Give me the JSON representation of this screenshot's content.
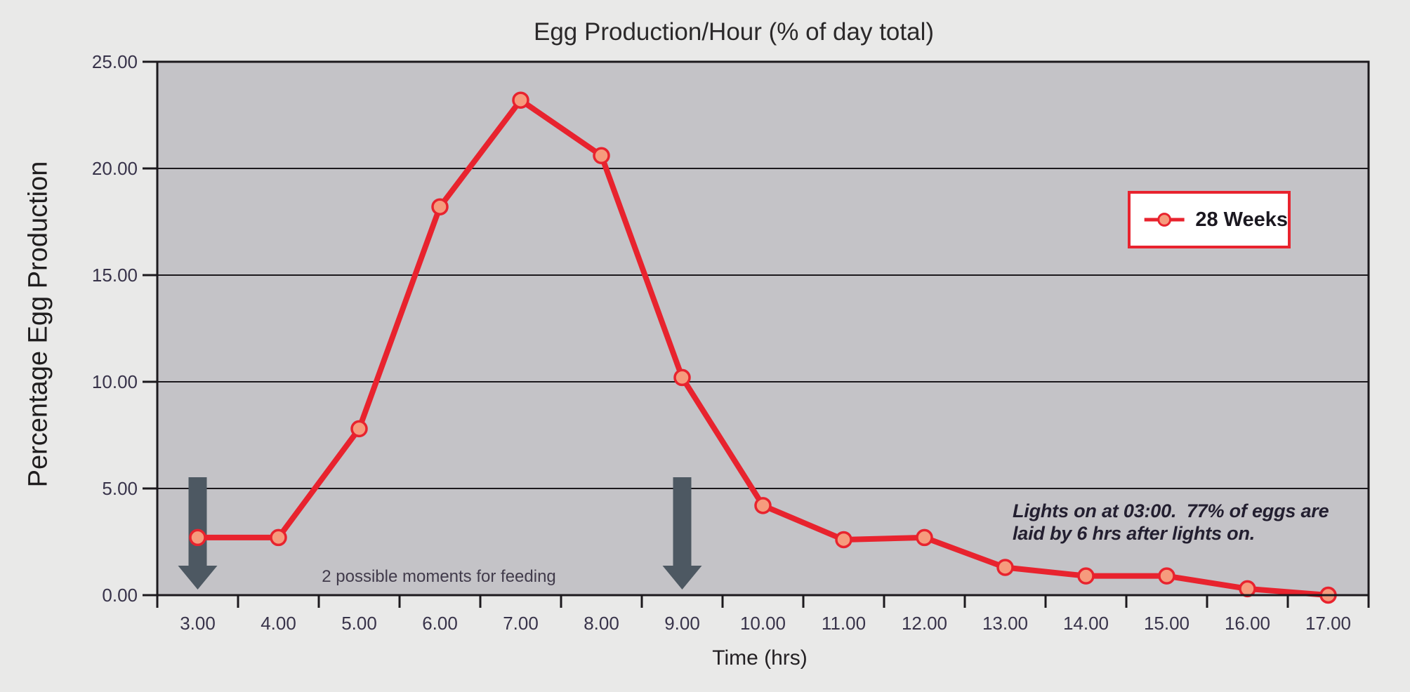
{
  "page": {
    "background": "#e9e9e8"
  },
  "chart_data": {
    "type": "line",
    "title": "Egg Production/Hour (% of day total)",
    "xlabel": "Time (hrs)",
    "ylabel": "Percentage Egg Production",
    "x": [
      3,
      4,
      5,
      6,
      7,
      8,
      9,
      10,
      11,
      12,
      13,
      14,
      15,
      16,
      17
    ],
    "x_tick_labels": [
      "3.00",
      "4.00",
      "5.00",
      "6.00",
      "7.00",
      "8.00",
      "9.00",
      "10.00",
      "11.00",
      "12.00",
      "13.00",
      "14.00",
      "15.00",
      "16.00",
      "17.00"
    ],
    "y_tick_labels": [
      "0.00",
      "5.00",
      "10.00",
      "15.00",
      "20.00",
      "25.00"
    ],
    "ylim": [
      0,
      25
    ],
    "grid": "horizontal",
    "legend_position": "right",
    "series": [
      {
        "name": "28 Weeks",
        "values": [
          2.7,
          2.7,
          7.8,
          18.2,
          23.2,
          20.6,
          10.2,
          4.2,
          2.6,
          2.7,
          1.3,
          0.9,
          0.9,
          0.3,
          0.0
        ]
      }
    ],
    "annotations": {
      "feeding_label": "2 possible moments for feeding",
      "feeding_arrow_hours": [
        3,
        9
      ],
      "lights_note_lines": [
        "Lights on at 03:00.  77% of eggs are",
        "laid by 6 hrs after lights on."
      ]
    },
    "colors": {
      "line": "#e8232e",
      "marker_fill": "#f69b7d",
      "arrow": "#4d5862",
      "plot_background": "#c4c3c7",
      "axis": "#1c191d",
      "tick_text": "#38334a",
      "legend_border": "#e8232e",
      "legend_background": "#ffffff",
      "page_background": "#e9e9e8"
    }
  }
}
